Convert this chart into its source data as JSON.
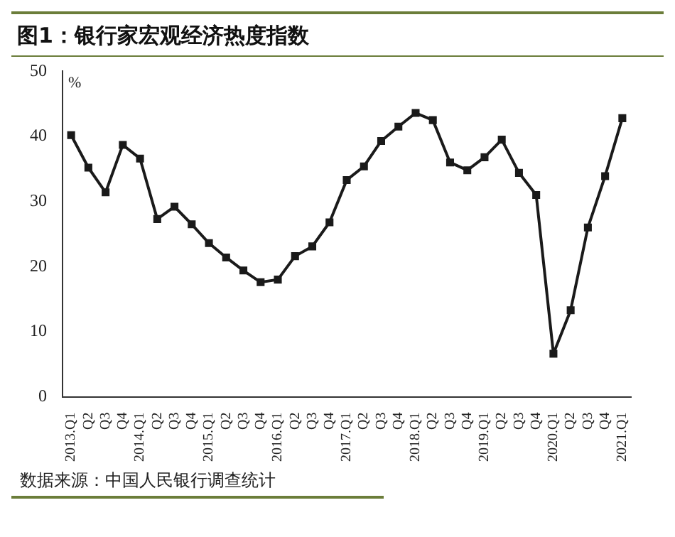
{
  "chart_data": {
    "type": "line",
    "title": "图1：银行家宏观经济热度指数",
    "ylabel": "%",
    "categories": [
      "2013.Q1",
      "Q2",
      "Q3",
      "Q4",
      "2014.Q1",
      "Q2",
      "Q3",
      "Q4",
      "2015.Q1",
      "Q2",
      "Q3",
      "Q4",
      "2016.Q1",
      "Q2",
      "Q3",
      "Q4",
      "2017.Q1",
      "Q2",
      "Q3",
      "Q4",
      "2018.Q1",
      "Q2",
      "Q3",
      "Q4",
      "2019.Q1",
      "Q2",
      "Q3",
      "Q4",
      "2020.Q1",
      "Q2",
      "Q3",
      "Q4",
      "2021.Q1"
    ],
    "series": [
      {
        "color": "#1a1a1a",
        "values": [
          40.2,
          35.2,
          31.4,
          38.7,
          36.6,
          27.3,
          29.2,
          26.5,
          23.6,
          21.4,
          19.4,
          17.6,
          18.0,
          21.6,
          23.1,
          26.8,
          33.3,
          35.4,
          39.3,
          41.5,
          43.6,
          42.5,
          36.0,
          34.8,
          36.8,
          39.5,
          34.4,
          31.0,
          6.6,
          13.3,
          26.0,
          33.9,
          42.8
        ]
      }
    ],
    "ylim": [
      0,
      50
    ],
    "yticks": [
      0,
      10,
      20,
      30,
      40,
      50
    ],
    "grid": false,
    "legend": false,
    "marker": "square",
    "line_style": "solid",
    "annotations": [
      "数据来源：中国人民银行调查统计"
    ]
  }
}
